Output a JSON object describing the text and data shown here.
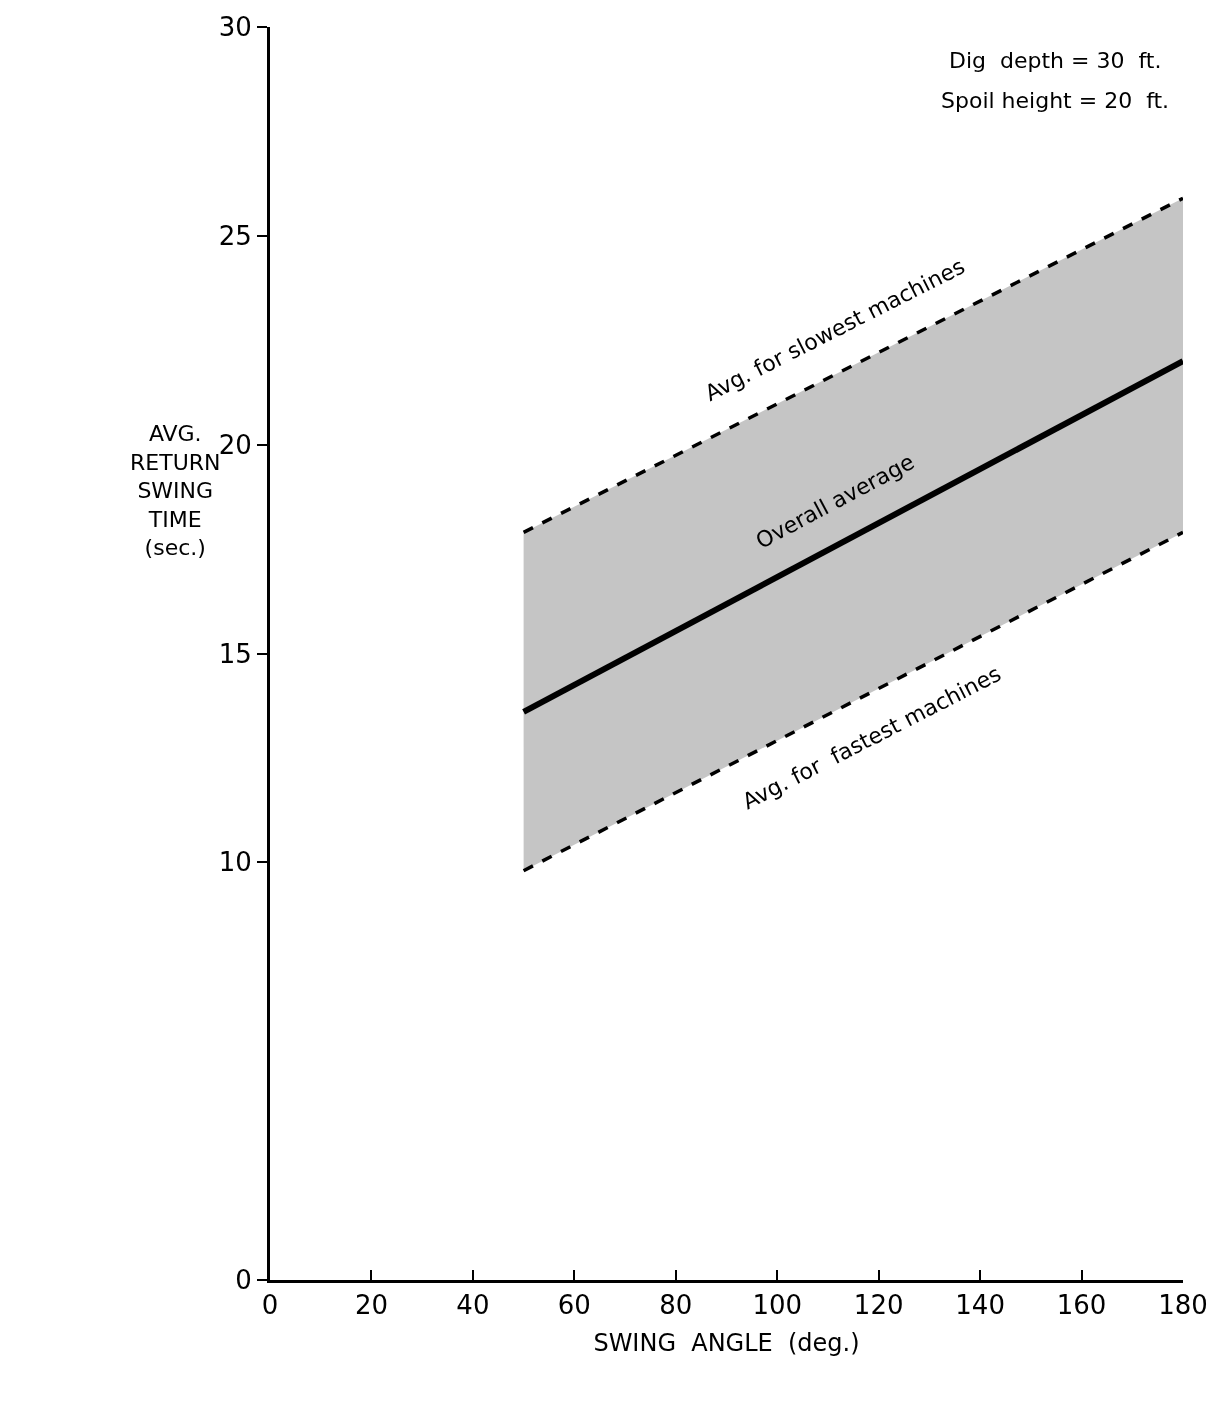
{
  "chart_data": {
    "type": "line",
    "xlabel": "SWING  ANGLE  (deg.)",
    "ylabel": "AVG.\nRETURN\nSWING\nTIME\n(sec.)",
    "x": [
      50,
      180
    ],
    "series": [
      {
        "name": "Avg. for slowest machines",
        "color": "#000000",
        "line_style": "dashed",
        "values": [
          17.9,
          25.9
        ]
      },
      {
        "name": "Overall average",
        "color": "#000000",
        "line_style": "solid",
        "values": [
          13.6,
          22
        ],
        "lower": [
          9.8,
          17.9
        ],
        "upper": [
          17.9,
          25.9
        ]
      },
      {
        "name": "Avg. for  fastest machines",
        "color": "#000000",
        "line_style": "dashed",
        "values": [
          9.8,
          17.9
        ]
      }
    ],
    "xlim": [
      0,
      180
    ],
    "xticks": [
      0,
      20,
      40,
      60,
      80,
      100,
      120,
      140,
      160,
      180
    ],
    "ylim": [
      0,
      30
    ],
    "yticks": [
      0,
      10,
      15,
      20,
      25,
      30
    ],
    "annotations": [
      "Dig  depth = 30  ft.",
      "Spoil height = 20  ft."
    ],
    "legend": false,
    "marker": "none"
  }
}
